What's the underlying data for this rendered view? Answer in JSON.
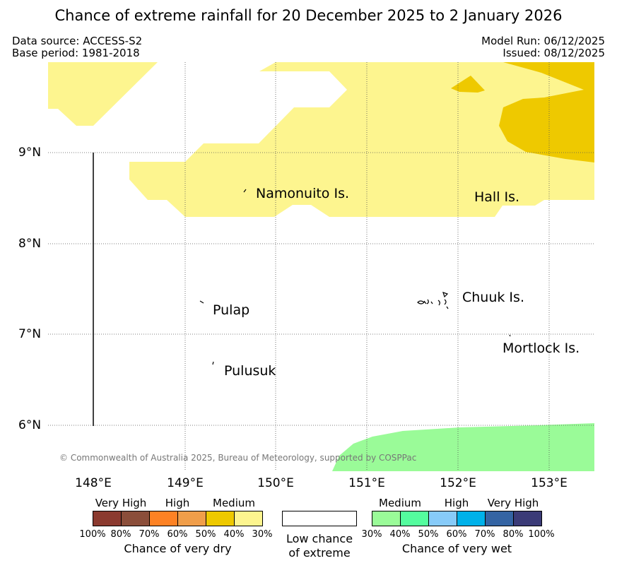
{
  "title": "Chance of extreme rainfall for 20 December 2025 to 2 January 2026",
  "meta": {
    "data_source": "Data source: ACCESS-S2",
    "base_period": "Base period: 1981-2018",
    "model_run": "Model Run: 06/12/2025",
    "issued": "Issued: 08/12/2025"
  },
  "colors": {
    "very_high_dry_1": "#8b3a2f",
    "very_high_dry_2": "#8b4e3a",
    "high_dry_1": "#fd8224",
    "high_dry_2": "#f09e4a",
    "medium_dry_1": "#eec900",
    "medium_dry_2": "#fdf58f",
    "low": "#ffffff",
    "medium_wet_1": "#9afb98",
    "medium_wet_2": "#54fc9e",
    "high_wet_1": "#87cbf9",
    "high_wet_2": "#00b1e9",
    "very_high_wet_1": "#3464a3",
    "very_high_wet_2": "#3b3b77"
  },
  "map": {
    "latitude_labels": [
      "9°N",
      "8°N",
      "7°N",
      "6°N"
    ],
    "longitude_labels": [
      "148°E",
      "149°E",
      "150°E",
      "151°E",
      "152°E",
      "153°E"
    ],
    "places": {
      "namonuito": "Namonuito Is.",
      "hall": "Hall Is.",
      "chuuk": "Chuuk Is.",
      "pulap": "Pulap",
      "pulusuk": "Pulusuk",
      "mortlock": "Mortlock Is."
    },
    "copyright": "© Commonwealth of Australia 2025, Bureau of Meteorology, supported by COSPPac"
  },
  "legend": {
    "dry_categories": [
      "Very High",
      "High",
      "Medium"
    ],
    "wet_categories": [
      "Medium",
      "High",
      "Very High"
    ],
    "dry_percents": [
      "100%",
      "80%",
      "70%",
      "60%",
      "50%",
      "40%",
      "30%"
    ],
    "wet_percents": [
      "30%",
      "40%",
      "50%",
      "60%",
      "70%",
      "80%",
      "100%"
    ],
    "dry_caption": "Chance of very dry",
    "low_caption_line1": "Low chance",
    "low_caption_line2": "of extreme",
    "wet_caption": "Chance of very wet"
  }
}
